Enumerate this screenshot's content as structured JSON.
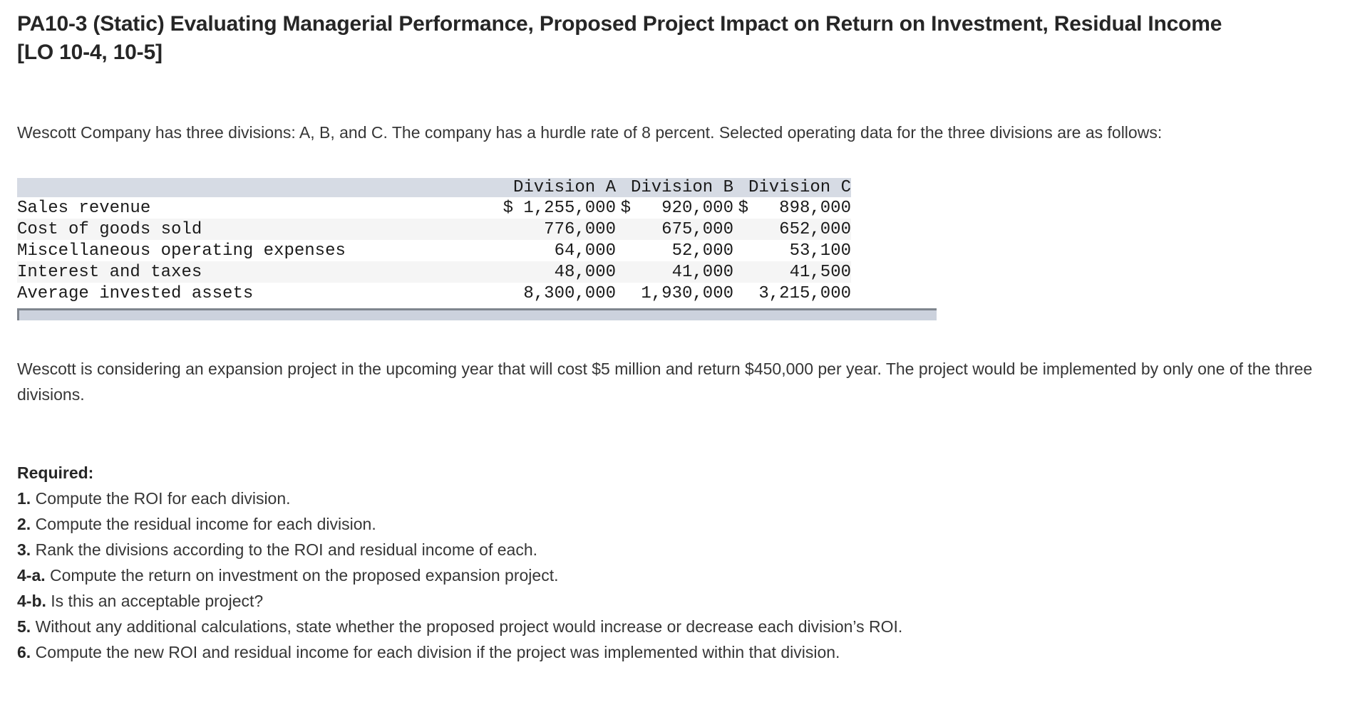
{
  "title": "PA10-3 (Static) Evaluating Managerial Performance, Proposed Project Impact on Return on Investment, Residual Income [LO 10-4, 10-5]",
  "intro": "Wescott Company has three divisions: A, B, and C. The company has a hurdle rate of 8 percent. Selected operating data for the three divisions are as follows:",
  "table": {
    "columns": [
      "",
      "Division A",
      "Division B",
      "Division C"
    ],
    "rows": [
      {
        "label": "Sales revenue",
        "values": [
          "$ 1,255,000",
          "$   920,000",
          "$   898,000"
        ]
      },
      {
        "label": "Cost of goods sold",
        "values": [
          "776,000",
          "675,000",
          "652,000"
        ]
      },
      {
        "label": "Miscellaneous operating expenses",
        "values": [
          "64,000",
          "52,000",
          "53,100"
        ]
      },
      {
        "label": "Interest and taxes",
        "values": [
          "48,000",
          "41,000",
          "41,500"
        ]
      },
      {
        "label": "Average invested assets",
        "values": [
          "8,300,000",
          "1,930,000",
          "3,215,000"
        ]
      }
    ]
  },
  "project_note": "Wescott is considering an expansion project in the upcoming year that will cost $5 million and return $450,000 per year. The project would be implemented by only one of the three divisions.",
  "required_label": "Required:",
  "required_items": [
    {
      "number": "1.",
      "text": "Compute the ROI for each division."
    },
    {
      "number": "2.",
      "text": "Compute the residual income for each division."
    },
    {
      "number": "3.",
      "text": "Rank the divisions according to the ROI and residual income of each."
    },
    {
      "number": "4-a.",
      "text": "Compute the return on investment on the proposed expansion project."
    },
    {
      "number": "4-b.",
      "text": "Is this an acceptable project?"
    },
    {
      "number": "5.",
      "text": "Without any additional calculations, state whether the proposed project would increase or decrease each division’s ROI."
    },
    {
      "number": "6.",
      "text": "Compute the new ROI and residual income for each division if the project was implemented within that division."
    }
  ],
  "colors": {
    "table_header_bg": "#d6dbe4",
    "table_stripe_bg": "#f5f5f5",
    "scrollbar_track": "#ccd2dd",
    "scrollbar_border": "#7f858e"
  }
}
